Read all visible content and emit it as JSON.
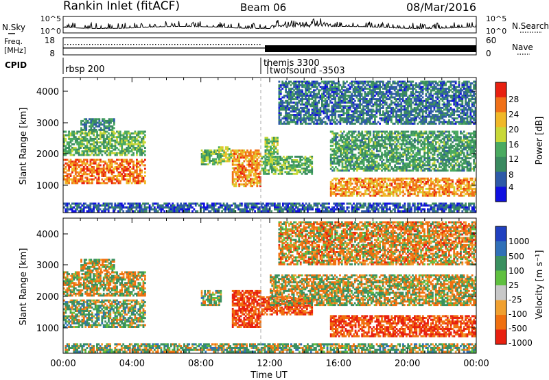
{
  "header": {
    "title": "Rankin Inlet (fitACF)",
    "beam": "Beam 06",
    "date": "08/Mar/2016"
  },
  "noise_panel": {
    "left_label": "N.Sky",
    "right_label": "N.Search",
    "left_ticks": [
      "10^5",
      "10^0"
    ],
    "right_ticks": [
      "10^5",
      "10^0"
    ]
  },
  "freq_panel": {
    "left_label_1": "Freq.",
    "left_label_2": "[MHz]",
    "right_label": "Nave",
    "left_ticks": [
      "18",
      "8"
    ],
    "right_ticks": [
      "60",
      "0"
    ]
  },
  "cpid_panel": {
    "label": "CPID",
    "modes": [
      {
        "name": "rbsp 200",
        "start_hour": 0.0
      },
      {
        "name": "themis 3300",
        "start_hour": 11.6
      },
      {
        "name": "twofsound -3503",
        "start_hour": 12.0
      }
    ]
  },
  "x_axis": {
    "label": "Time UT",
    "range_hours": [
      0,
      24
    ],
    "tick_labels": [
      "00:00",
      "04:00",
      "08:00",
      "12:00",
      "16:00",
      "20:00",
      "00:00"
    ]
  },
  "power_panel": {
    "ylabel": "Slant Range [km]",
    "yticks": [
      "1000",
      "2000",
      "3000",
      "4000"
    ],
    "colorbar_label": "Power [dB]",
    "colorbar_ticks": [
      "4",
      "8",
      "12",
      "16",
      "20",
      "24",
      "28"
    ]
  },
  "velocity_panel": {
    "ylabel": "Slant Range [km]",
    "yticks": [
      "1000",
      "2000",
      "3000",
      "4000"
    ],
    "colorbar_label": "Velocity [m s⁻¹]",
    "colorbar_ticks": [
      "1000",
      "500",
      "100",
      "25",
      "-25",
      "-100",
      "-500",
      "-1000"
    ]
  },
  "colors": {
    "power_scale": [
      "#1010e0",
      "#2e5aa8",
      "#3a8a60",
      "#4aaa60",
      "#c8d838",
      "#f0b828",
      "#f07018",
      "#e82010"
    ],
    "velocity_scale": [
      "#2040c0",
      "#3070b8",
      "#3a9060",
      "#60c040",
      "#c8c8c8",
      "#f0a030",
      "#f07010",
      "#e82010"
    ]
  },
  "chart_data": [
    {
      "type": "heatmap",
      "name": "Power [dB]",
      "x_unit": "hours UT",
      "y_unit": "slant range km",
      "xlim": [
        0,
        24
      ],
      "ylim": [
        180,
        4500
      ],
      "clim": [
        0,
        32
      ],
      "echo_regions": [
        {
          "t": [
            0.0,
            4.8
          ],
          "r": [
            1100,
            1900
          ],
          "value": 26
        },
        {
          "t": [
            0.0,
            4.8
          ],
          "r": [
            2000,
            2800
          ],
          "value": 14
        },
        {
          "t": [
            1.0,
            3.0
          ],
          "r": [
            2800,
            3200
          ],
          "value": 10
        },
        {
          "t": [
            8.0,
            9.2
          ],
          "r": [
            1700,
            2200
          ],
          "value": 14
        },
        {
          "t": [
            9.0,
            9.8
          ],
          "r": [
            1800,
            2300
          ],
          "value": 18
        },
        {
          "t": [
            9.8,
            11.5
          ],
          "r": [
            1000,
            2200
          ],
          "value": 24
        },
        {
          "t": [
            11.5,
            14.5
          ],
          "r": [
            1400,
            2000
          ],
          "value": 14
        },
        {
          "t": [
            11.7,
            12.5
          ],
          "r": [
            1700,
            2600
          ],
          "value": 16
        },
        {
          "t": [
            15.5,
            24.0
          ],
          "r": [
            700,
            1300
          ],
          "value": 24
        },
        {
          "t": [
            15.5,
            24.0
          ],
          "r": [
            1500,
            2800
          ],
          "value": 12
        },
        {
          "t": [
            12.5,
            24.0
          ],
          "r": [
            3000,
            4400
          ],
          "value": 8
        },
        {
          "t": [
            0.0,
            24.0
          ],
          "r": [
            200,
            500
          ],
          "value": 6
        }
      ]
    },
    {
      "type": "heatmap",
      "name": "Velocity [m s-1]",
      "x_unit": "hours UT",
      "y_unit": "slant range km",
      "xlim": [
        0,
        24
      ],
      "ylim": [
        180,
        4500
      ],
      "clim": [
        -1000,
        1000
      ],
      "echo_regions": [
        {
          "t": [
            0.0,
            4.8
          ],
          "r": [
            1000,
            1900
          ],
          "value": 100
        },
        {
          "t": [
            0.0,
            4.8
          ],
          "r": [
            2000,
            2800
          ],
          "value": 0
        },
        {
          "t": [
            1.0,
            3.0
          ],
          "r": [
            2800,
            3200
          ],
          "value": 0
        },
        {
          "t": [
            8.0,
            9.2
          ],
          "r": [
            1700,
            2200
          ],
          "value": 100
        },
        {
          "t": [
            9.8,
            11.5
          ],
          "r": [
            1000,
            2200
          ],
          "value": -300
        },
        {
          "t": [
            11.5,
            14.5
          ],
          "r": [
            1400,
            2000
          ],
          "value": -300
        },
        {
          "t": [
            15.5,
            24.0
          ],
          "r": [
            700,
            1400
          ],
          "value": -300
        },
        {
          "t": [
            12.0,
            24.0
          ],
          "r": [
            1700,
            2700
          ],
          "value": 0
        },
        {
          "t": [
            12.5,
            24.0
          ],
          "r": [
            3000,
            4400
          ],
          "value": -100
        },
        {
          "t": [
            0.0,
            24.0
          ],
          "r": [
            200,
            500
          ],
          "value": 100
        }
      ]
    }
  ]
}
